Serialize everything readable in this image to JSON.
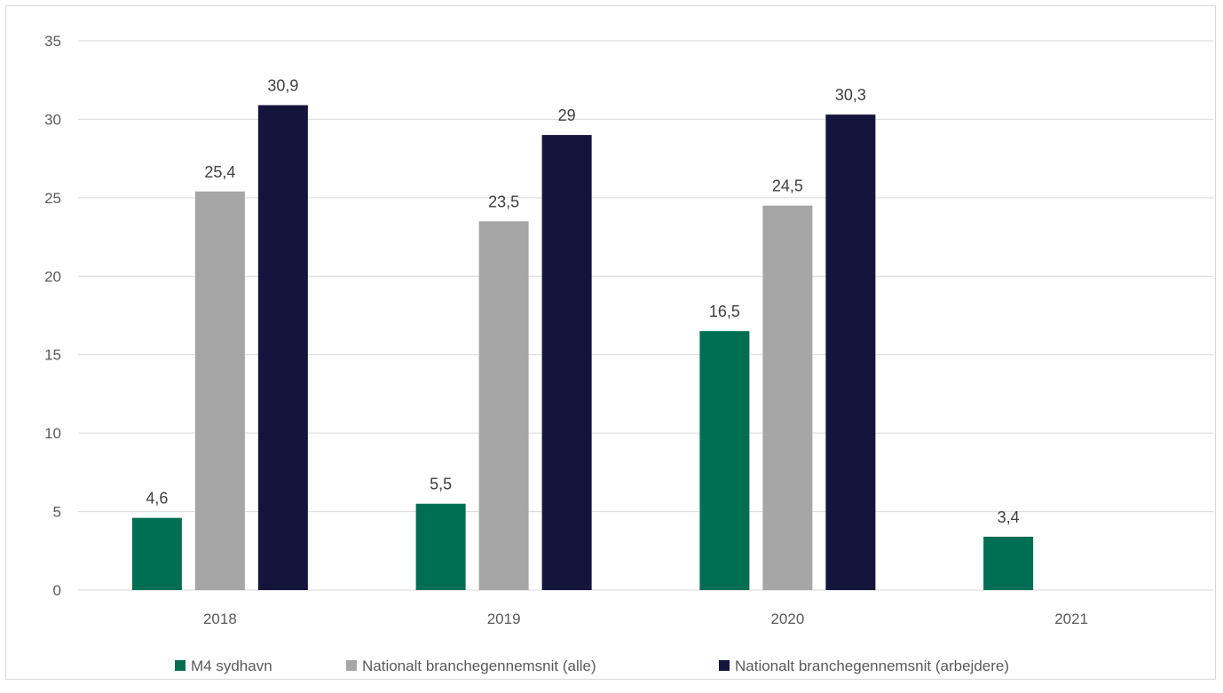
{
  "chart_data": {
    "type": "bar",
    "categories": [
      "2018",
      "2019",
      "2020",
      "2021"
    ],
    "series": [
      {
        "name": "M4 sydhavn",
        "color": "#006e52",
        "values": [
          4.6,
          5.5,
          16.5,
          3.4
        ],
        "labels": [
          "4,6",
          "5,5",
          "16,5",
          "3,4"
        ]
      },
      {
        "name": "Nationalt branchegennemsnit (alle)",
        "color": "#a6a6a6",
        "values": [
          25.4,
          23.5,
          24.5,
          null
        ],
        "labels": [
          "25,4",
          "23,5",
          "24,5",
          ""
        ]
      },
      {
        "name": "Nationalt branchegennemsnit (arbejdere)",
        "color": "#14143c",
        "values": [
          30.9,
          29,
          30.3,
          null
        ],
        "labels": [
          "30,9",
          "29",
          "30,3",
          ""
        ]
      }
    ],
    "yticks": [
      "0",
      "5",
      "10",
      "15",
      "20",
      "25",
      "30",
      "35"
    ],
    "ylim": [
      0,
      35
    ],
    "grid": true,
    "legend": "bottom-center"
  }
}
